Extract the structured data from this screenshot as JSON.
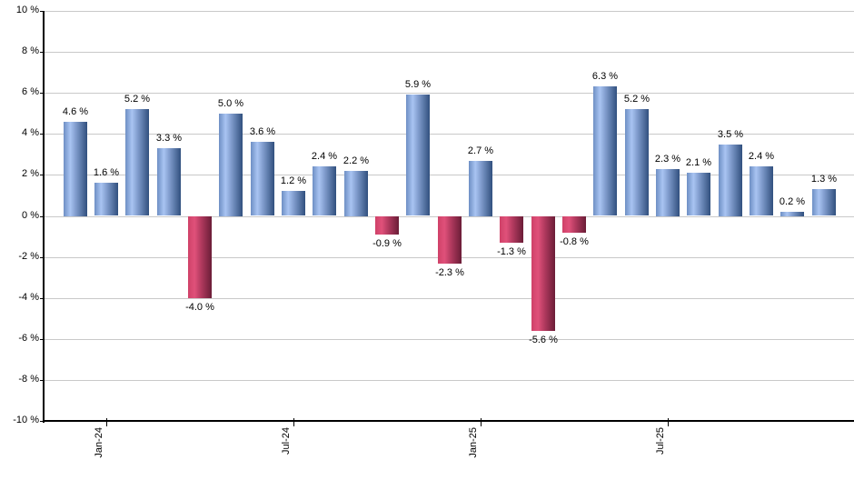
{
  "chart_data": {
    "type": "bar",
    "title": "",
    "xlabel": "",
    "ylabel": "",
    "ylim": [
      -10,
      10
    ],
    "y_tick_step": 2,
    "grid": "horizontal",
    "legend_position": "none",
    "y_tick_labels": [
      "10 %",
      "8 %",
      "6 %",
      "4 %",
      "2 %",
      "0 %",
      "-2 %",
      "-4 %",
      "-6 %",
      "-8 %",
      "-10 %"
    ],
    "y_tick_values": [
      10,
      8,
      6,
      4,
      2,
      0,
      -2,
      -4,
      -6,
      -8,
      -10
    ],
    "x_ticks": [
      {
        "label": "Jan-24",
        "bar_index": 1
      },
      {
        "label": "Jul-24",
        "bar_index": 7
      },
      {
        "label": "Jan-25",
        "bar_index": 13
      },
      {
        "label": "Jul-25",
        "bar_index": 19
      }
    ],
    "bars": [
      {
        "value": 4.6,
        "label": "4.6 %",
        "sentiment": "positive"
      },
      {
        "value": 1.6,
        "label": "1.6 %",
        "sentiment": "positive"
      },
      {
        "value": 5.2,
        "label": "5.2 %",
        "sentiment": "positive"
      },
      {
        "value": 3.3,
        "label": "3.3 %",
        "sentiment": "positive"
      },
      {
        "value": -4.0,
        "label": "-4.0 %",
        "sentiment": "negative"
      },
      {
        "value": 5.0,
        "label": "5.0 %",
        "sentiment": "positive"
      },
      {
        "value": 3.6,
        "label": "3.6 %",
        "sentiment": "positive"
      },
      {
        "value": 1.2,
        "label": "1.2 %",
        "sentiment": "positive"
      },
      {
        "value": 2.4,
        "label": "2.4 %",
        "sentiment": "positive"
      },
      {
        "value": 2.2,
        "label": "2.2 %",
        "sentiment": "positive"
      },
      {
        "value": -0.9,
        "label": "-0.9 %",
        "sentiment": "negative"
      },
      {
        "value": 5.9,
        "label": "5.9 %",
        "sentiment": "positive"
      },
      {
        "value": -2.3,
        "label": "-2.3 %",
        "sentiment": "negative"
      },
      {
        "value": 2.7,
        "label": "2.7 %",
        "sentiment": "positive"
      },
      {
        "value": -1.3,
        "label": "-1.3 %",
        "sentiment": "negative"
      },
      {
        "value": -5.6,
        "label": "-5.6 %",
        "sentiment": "negative"
      },
      {
        "value": -0.8,
        "label": "-0.8 %",
        "sentiment": "negative"
      },
      {
        "value": 6.3,
        "label": "6.3 %",
        "sentiment": "positive"
      },
      {
        "value": 5.2,
        "label": "5.2 %",
        "sentiment": "positive"
      },
      {
        "value": 2.3,
        "label": "2.3 %",
        "sentiment": "positive"
      },
      {
        "value": 2.1,
        "label": "2.1 %",
        "sentiment": "positive"
      },
      {
        "value": 3.5,
        "label": "3.5 %",
        "sentiment": "positive"
      },
      {
        "value": 2.4,
        "label": "2.4 %",
        "sentiment": "positive"
      },
      {
        "value": 0.2,
        "label": "0.2 %",
        "sentiment": "positive"
      },
      {
        "value": 1.3,
        "label": "1.3 %",
        "sentiment": "positive"
      }
    ],
    "colors": {
      "positive_bar_edge": "#31507e",
      "positive_bar_highlight": "#a9c4f2",
      "negative_bar_edge": "#6b1d37",
      "negative_bar_highlight": "#e0517a",
      "gridline": "#c9c9c9",
      "axis": "#000000",
      "text": "#000000"
    }
  }
}
